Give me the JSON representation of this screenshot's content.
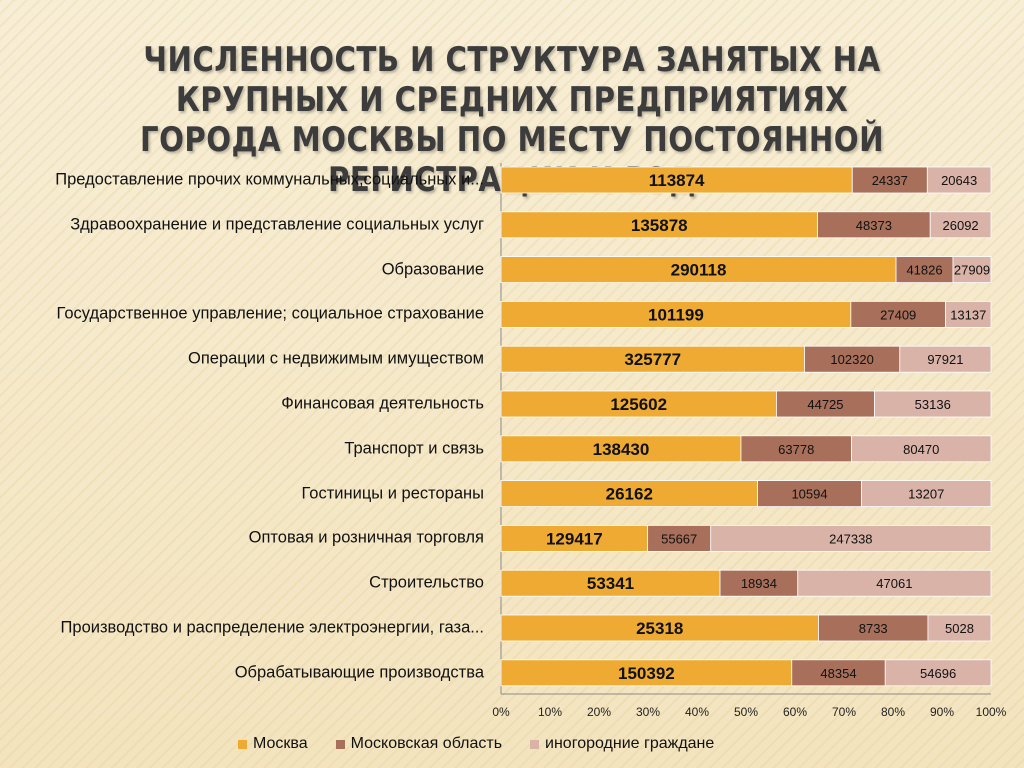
{
  "chart_data": {
    "type": "bar",
    "orientation": "horizontal",
    "stacking": "percent",
    "title": "ЧИСЛЕННОСТЬ И СТРУКТУРА ЗАНЯТЫХ НА КРУПНЫХ И СРЕДНИХ ПРЕДПРИЯТИЯХ ГОРОДА МОСКВЫ ПО МЕСТУ ПОСТОЯННОЙ РЕГИСТРАЦИИ И ВЭД",
    "categories": [
      "Предоставление прочих коммунальных,социальных и...",
      "Здравоохранение и представление социальных услуг",
      "Образование",
      "Государственное управление; социальное страхование",
      "Операции с недвижимым имуществом",
      "Финансовая деятельность",
      "Транспорт и связь",
      "Гостиницы и рестораны",
      "Оптовая и розничная торговля",
      "Строительство",
      "Производство и распределение электроэнергии, газа...",
      "Обрабатывающие производства"
    ],
    "series": [
      {
        "name": "Москва",
        "color": "#eeaa33",
        "values": [
          113874,
          135878,
          290118,
          101199,
          325777,
          125602,
          138430,
          26162,
          129417,
          53341,
          25318,
          150392
        ]
      },
      {
        "name": "Московская область",
        "color": "#a8705a",
        "values": [
          24337,
          48373,
          41826,
          27409,
          102320,
          44725,
          63778,
          10594,
          55667,
          18934,
          8733,
          48354
        ]
      },
      {
        "name": "иногородние граждане",
        "color": "#d9b3a8",
        "values": [
          20643,
          26092,
          27909,
          13137,
          97921,
          53136,
          80470,
          13207,
          247338,
          47061,
          5028,
          54696
        ]
      }
    ],
    "xticks": [
      "0%",
      "10%",
      "20%",
      "30%",
      "40%",
      "50%",
      "60%",
      "70%",
      "80%",
      "90%",
      "100%"
    ],
    "xlim": [
      0,
      100
    ],
    "legend_position": "bottom",
    "grid": false
  }
}
